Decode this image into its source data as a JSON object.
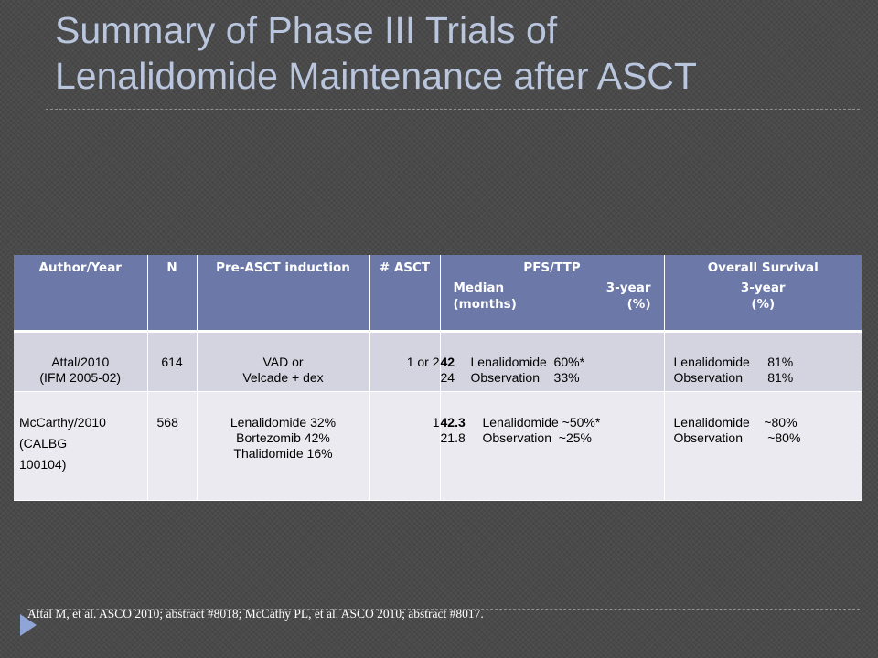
{
  "slide": {
    "title_line1": "Summary of Phase III Trials of",
    "title_line2": "Lenalidomide Maintenance after ASCT",
    "citation": "Attal M, et al. ASCO 2010; abstract #8018; McCathy PL, et al. ASCO 2010; abstract #8017."
  },
  "table": {
    "headers": {
      "author": "Author/Year",
      "n": "N",
      "induction": "Pre-ASCT induction",
      "asct": "# ASCT",
      "pfs": "PFS/TTP",
      "pfs_sub_left_1": "Median",
      "pfs_sub_left_2": "(months)",
      "pfs_sub_right_1": "3-year",
      "pfs_sub_right_2": "(%)",
      "os": "Overall Survival",
      "os_sub_1": "3-year",
      "os_sub_2": "(%)"
    },
    "rows": [
      {
        "author_1": "Attal/2010",
        "author_2": "(IFM 2005-02)",
        "n": "614",
        "induction_1": "VAD or",
        "induction_2": "Velcade + dex",
        "asct": "1 or 2",
        "pfs_1_median": "42",
        "pfs_1_text": "Lenalidomide  60%*",
        "pfs_2_median": "24",
        "pfs_2_text": "Observation    33%",
        "os_1": "Lenalidomide     81%",
        "os_2": "Observation       81%"
      },
      {
        "author_1": "McCarthy/2010",
        "author_2": "(CALBG",
        "author_3": "100104)",
        "n": "568",
        "induction_1": "Lenalidomide  32%",
        "induction_2": "Bortezomib 42%",
        "induction_3": "Thalidomide 16%",
        "asct": "1",
        "pfs_1_median": "42.3",
        "pfs_1_text": "Lenalidomide ~50%*",
        "pfs_2_median": "21.8",
        "pfs_2_text": "Observation  ~25%",
        "os_1": "Lenalidomide    ~80%",
        "os_2": "Observation       ~80%"
      }
    ]
  },
  "colors": {
    "background": "#4a4a4a",
    "title": "#b9c6de",
    "header_fill": "#6b78a8",
    "row1_fill": "#d3d4df",
    "row2_fill": "#eaeaf0",
    "bullet": "#8fa5d6"
  },
  "icons": {
    "bullet": "triangle-bullet-icon"
  }
}
